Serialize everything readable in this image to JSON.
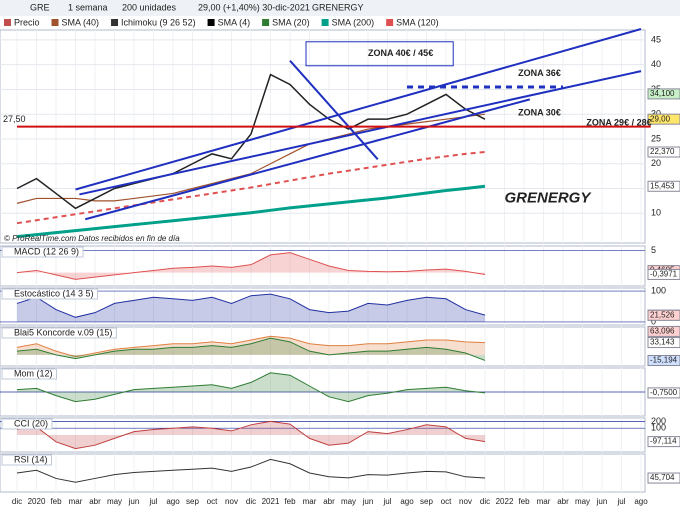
{
  "header": {
    "symbol": "GRE",
    "period": "1 semana",
    "units": "200 unidades",
    "quote": "29,00 (+1,40%) 30-dic-2021",
    "name": "GRENERGY",
    "legend": [
      {
        "name": "Precio",
        "color": "#c0504d"
      },
      {
        "name": "SMA (40)",
        "color": "#a0522d"
      },
      {
        "name": "Ichimoku (9 26 52)",
        "color": "#333333"
      },
      {
        "name": "SMA (4)",
        "color": "#000000"
      },
      {
        "name": "SMA (20)",
        "color": "#2e7d32"
      },
      {
        "name": "SMA (200)",
        "color": "#00a08a"
      },
      {
        "name": "SMA (120)",
        "color": "#e05050"
      }
    ]
  },
  "chart_data": [
    {
      "type": "line",
      "title": "Precio",
      "categories": [
        "dic",
        "2020",
        "feb",
        "mar",
        "abr",
        "may",
        "jun",
        "jul",
        "ago",
        "sep",
        "oct",
        "nov",
        "dic",
        "2021",
        "feb",
        "mar",
        "abr",
        "may",
        "jun",
        "jul",
        "ago",
        "sep",
        "oct",
        "nov",
        "dic",
        "2022",
        "feb",
        "mar",
        "abr",
        "may",
        "jun",
        "jul",
        "ago"
      ],
      "ylim": [
        4,
        47
      ],
      "yticks": [
        10,
        15,
        20,
        25,
        30,
        35,
        40,
        45
      ],
      "series": [
        {
          "name": "SMA (200)",
          "color": "#00a08a",
          "width": 3,
          "values": [
            5.3,
            5.7,
            6.1,
            6.5,
            6.9,
            7.3,
            7.7,
            8.1,
            8.5,
            8.9,
            9.3,
            9.7,
            10.1,
            10.6,
            11.1,
            11.5,
            11.9,
            12.3,
            12.7,
            13.1,
            13.6,
            14.1,
            14.6,
            15.0,
            15.45,
            null,
            null,
            null,
            null,
            null,
            null,
            null,
            null
          ]
        },
        {
          "name": "SMA (120)",
          "color": "#e05050",
          "dash": true,
          "width": 2,
          "values": [
            8,
            8.6,
            9.2,
            9.8,
            10.4,
            11,
            11.6,
            12.2,
            12.8,
            13.4,
            14,
            14.6,
            15.2,
            15.9,
            16.6,
            17.3,
            18,
            18.6,
            19.2,
            19.8,
            20.4,
            21,
            21.5,
            22,
            22.37,
            null,
            null,
            null,
            null,
            null,
            null,
            null,
            null
          ]
        },
        {
          "name": "SMA (40)",
          "color": "#a0522d",
          "width": 1.2,
          "values": [
            12,
            13,
            13,
            13,
            12.5,
            12.5,
            13,
            13.5,
            14,
            15,
            16,
            17,
            18,
            20,
            22,
            24,
            25,
            26,
            27,
            27.5,
            28,
            28.5,
            29,
            29.5,
            30,
            null,
            null,
            null,
            null,
            null,
            null,
            null,
            null
          ]
        },
        {
          "name": "Precio",
          "color": "#222222",
          "width": 1.5,
          "values": [
            15,
            17,
            14,
            11,
            13,
            15,
            16,
            17,
            18,
            20,
            22,
            21,
            26,
            38,
            36,
            32,
            29,
            27,
            29,
            29,
            30,
            32,
            34,
            31,
            29,
            null,
            null,
            null,
            null,
            null,
            null,
            null,
            null
          ]
        }
      ],
      "trendlines": [
        {
          "x1": 3,
          "y1": 14.8,
          "x2": 32,
          "y2": 47.2,
          "color": "#1f2fbf"
        },
        {
          "x1": 3.2,
          "y1": 13.8,
          "x2": 32,
          "y2": 38.7,
          "color": "#1f2fbf"
        },
        {
          "x1": 3.5,
          "y1": 8.8,
          "x2": 26.3,
          "y2": 33,
          "color": "#1f2fbf"
        },
        {
          "x1": 14,
          "y1": 40.8,
          "x2": 18.5,
          "y2": 20.9,
          "color": "#1f2fbf"
        },
        {
          "x1": 20,
          "y1": 35.5,
          "x2": 28,
          "y2": 35.5,
          "color": "#1f2fbf",
          "dash": true
        },
        {
          "x1": 0,
          "y1": 27.5,
          "x2": 32.5,
          "y2": 27.5,
          "color": "#d01010"
        }
      ],
      "markers": [
        {
          "value": 34.1,
          "label": "34,100",
          "color": "#c8f0c8"
        },
        {
          "value": 29,
          "label": "29,00",
          "color": "#ffe66b"
        },
        {
          "value": 22.37,
          "label": "22,370",
          "color": "#ffffff"
        },
        {
          "value": 15.453,
          "label": "15,453",
          "color": "#ffffff"
        }
      ],
      "level_label": {
        "value": 27.5,
        "label": "27,50"
      },
      "annotations": [
        {
          "text": "ZONA 40€ / 45€",
          "color": "#1f2fbf",
          "x": 18,
          "y": 42.2,
          "box": true
        },
        {
          "text": "ZONA 36€",
          "color": "#1f2fbf",
          "x": 25.7,
          "y": 38.2
        },
        {
          "text": "ZONA 30€",
          "color": "#1f2fbf",
          "x": 25.7,
          "y": 30.2
        },
        {
          "text": "ZONA 29€ / 28€",
          "color": "#d01010",
          "x": 29.2,
          "y": 28.2
        },
        {
          "text": "GRENERGY",
          "color": "#2a8ad8",
          "x": 25,
          "y": 13,
          "big": true
        }
      ],
      "source": "© ProRealTime.com  Datos recibidos en fin de día"
    },
    {
      "type": "line",
      "title": "MACD (12 26 9)",
      "ylim": [
        -3,
        6
      ],
      "yticks": [
        5
      ],
      "series": [
        {
          "color": "#e05050",
          "values": [
            0,
            0.5,
            -0.5,
            -1.5,
            -1,
            -0.5,
            0,
            0.5,
            1,
            1.2,
            1.5,
            1.2,
            1.8,
            4,
            4.5,
            3,
            1.5,
            0.5,
            0.3,
            0.2,
            0.3,
            0.6,
            0.8,
            0.3,
            -0.4
          ],
          "fill": true
        }
      ],
      "markers": [
        {
          "value": 0.4605,
          "label": "0,4605",
          "color": "#ffd0d0"
        },
        {
          "value": -0.3971,
          "label": "-0,3971",
          "color": "#ffffff"
        }
      ]
    },
    {
      "type": "line",
      "title": "Estocástico (14 3 5)",
      "ylim": [
        -10,
        110
      ],
      "yticks": [
        0,
        100
      ],
      "series": [
        {
          "color": "#2030a0",
          "values": [
            60,
            80,
            40,
            15,
            30,
            60,
            70,
            80,
            75,
            70,
            80,
            60,
            85,
            90,
            75,
            40,
            30,
            35,
            60,
            55,
            70,
            80,
            75,
            40,
            22
          ],
          "fill": true
        }
      ],
      "markers": [
        {
          "value": 21.888,
          "label": "21,888",
          "color": "#ffffff"
        },
        {
          "value": 21.526,
          "label": "21,526",
          "color": "#ffd0d0"
        }
      ]
    },
    {
      "type": "line",
      "title": "Blai5 Koncorde v.09 (15)",
      "ylim": [
        -30,
        75
      ],
      "yticks": [],
      "series": [
        {
          "color": "#e08040",
          "values": [
            20,
            30,
            10,
            -5,
            5,
            15,
            20,
            25,
            30,
            30,
            35,
            30,
            40,
            50,
            45,
            30,
            25,
            25,
            30,
            30,
            35,
            40,
            40,
            35,
            33
          ],
          "fill": true
        },
        {
          "color": "#2e7d32",
          "values": [
            10,
            15,
            0,
            -10,
            0,
            10,
            15,
            15,
            20,
            20,
            25,
            20,
            30,
            45,
            35,
            10,
            0,
            5,
            10,
            10,
            15,
            20,
            15,
            5,
            -15
          ],
          "fill": true
        }
      ],
      "markers": [
        {
          "value": 63.096,
          "label": "63,096",
          "color": "#ffd0d0"
        },
        {
          "value": 33.143,
          "label": "33,143",
          "color": "#ffffff"
        },
        {
          "value": -15.194,
          "label": "-15,194",
          "color": "#d0e0ff"
        }
      ]
    },
    {
      "type": "line",
      "title": "Mom (12)",
      "ylim": [
        -20,
        20
      ],
      "yticks": [
        0
      ],
      "series": [
        {
          "color": "#2e7d32",
          "values": [
            2,
            3,
            -3,
            -8,
            -6,
            -2,
            2,
            3,
            4,
            5,
            6,
            3,
            8,
            16,
            14,
            5,
            -4,
            -8,
            -3,
            -1,
            2,
            3,
            4,
            1,
            -0.75
          ],
          "fill": true
        }
      ],
      "markers": [
        {
          "value": -0.75,
          "label": "-0,7500",
          "color": "#ffffff"
        }
      ]
    },
    {
      "type": "line",
      "title": "CCI (20)",
      "ylim": [
        -250,
        250
      ],
      "yticks": [
        100,
        200
      ],
      "series": [
        {
          "color": "#c04040",
          "values": [
            80,
            120,
            -100,
            -200,
            -150,
            -50,
            50,
            80,
            100,
            120,
            100,
            60,
            150,
            200,
            160,
            -50,
            -150,
            -120,
            50,
            20,
            80,
            150,
            120,
            -50,
            -97
          ],
          "fill": true
        }
      ],
      "markers": [
        {
          "value": -97.114,
          "label": "-97,114",
          "color": "#ffffff"
        }
      ]
    },
    {
      "type": "line",
      "title": "RSI (14)",
      "ylim": [
        20,
        90
      ],
      "yticks": [],
      "series": [
        {
          "color": "#333333",
          "values": [
            55,
            60,
            45,
            38,
            45,
            52,
            56,
            58,
            60,
            62,
            64,
            58,
            66,
            80,
            72,
            55,
            48,
            46,
            52,
            51,
            55,
            58,
            57,
            48,
            45.7
          ]
        }
      ],
      "markers": [
        {
          "value": 45.704,
          "label": "45,704",
          "color": "#ffffff"
        }
      ]
    }
  ]
}
